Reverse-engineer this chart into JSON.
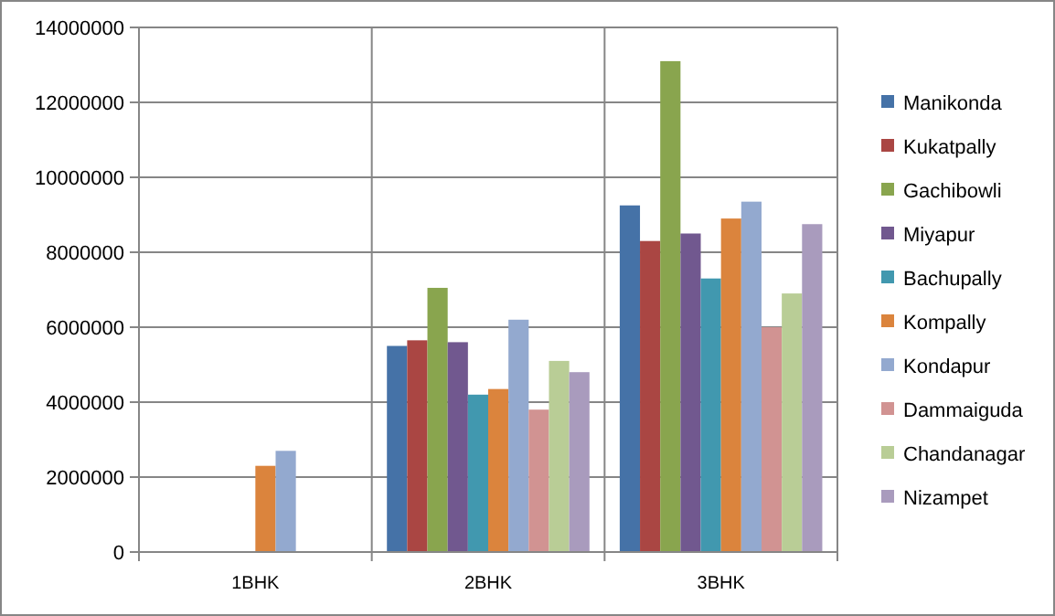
{
  "chart_data": {
    "type": "bar",
    "categories": [
      "1BHK",
      "2BHK",
      "3BHK"
    ],
    "series": [
      {
        "name": "Manikonda",
        "color": "#4572a7",
        "values": [
          null,
          5500000,
          9250000
        ]
      },
      {
        "name": "Kukatpally",
        "color": "#aa4643",
        "values": [
          null,
          5650000,
          8300000
        ]
      },
      {
        "name": "Gachibowli",
        "color": "#89a54e",
        "values": [
          null,
          7050000,
          13100000
        ]
      },
      {
        "name": "Miyapur",
        "color": "#71588f",
        "values": [
          null,
          5600000,
          8500000
        ]
      },
      {
        "name": "Bachupally",
        "color": "#4198af",
        "values": [
          null,
          4200000,
          7300000
        ]
      },
      {
        "name": "Kompally",
        "color": "#db843d",
        "values": [
          2300000,
          4350000,
          8900000
        ]
      },
      {
        "name": "Kondapur",
        "color": "#93a9cf",
        "values": [
          2700000,
          6200000,
          9350000
        ]
      },
      {
        "name": "Dammaiguda",
        "color": "#d19392",
        "values": [
          null,
          3800000,
          6000000
        ]
      },
      {
        "name": "Chandanagar",
        "color": "#b9cd96",
        "values": [
          null,
          5100000,
          6900000
        ]
      },
      {
        "name": "Nizampet",
        "color": "#a99bbd",
        "values": [
          null,
          4800000,
          8750000
        ]
      }
    ],
    "ylim": [
      0,
      14000000
    ],
    "yticks": [
      0,
      2000000,
      4000000,
      6000000,
      8000000,
      10000000,
      12000000,
      14000000
    ],
    "grid": true,
    "legend": "right"
  }
}
